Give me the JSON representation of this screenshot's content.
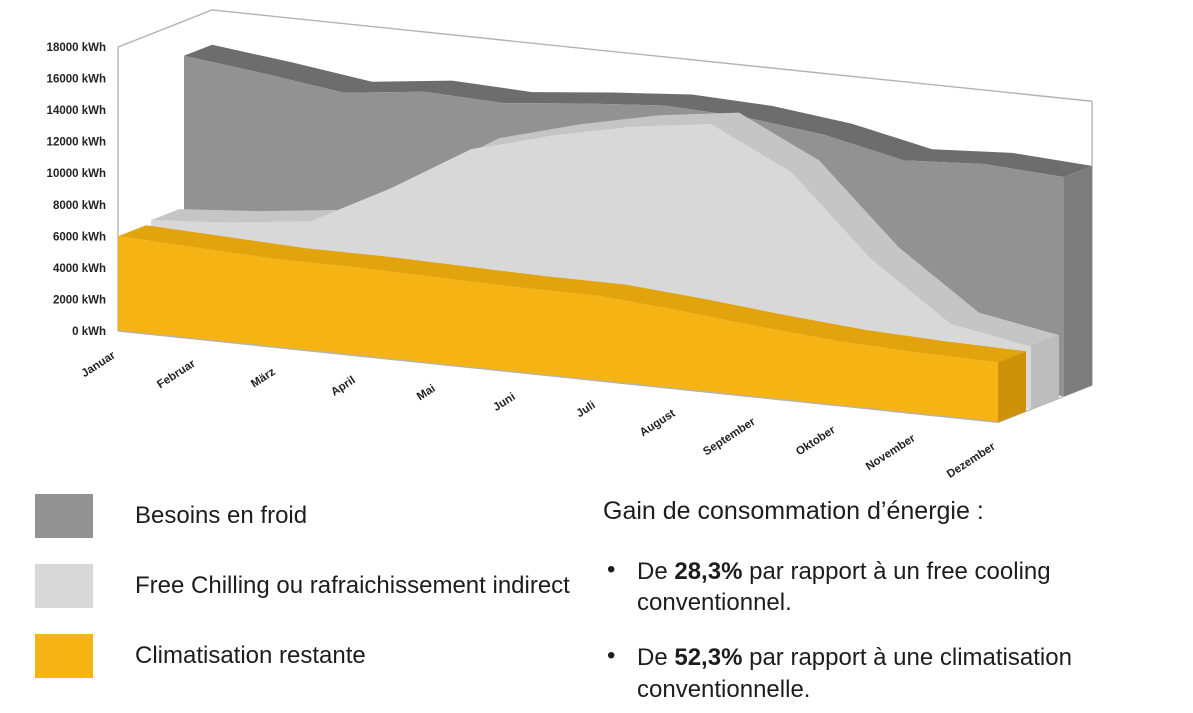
{
  "colors": {
    "besoins_face": "#929292",
    "besoins_top": "#6d6d6d",
    "besoins_cap": "#7c7c7c",
    "free_face": "#d8d8d8",
    "free_top": "#c5c5c5",
    "free_cap": "#bdbdbd",
    "clim_face": "#f5b314",
    "clim_top": "#e2a30c",
    "clim_cap": "#cd920a",
    "axis": "#b3b3b3",
    "label_text": "#222222"
  },
  "chart_data": {
    "type": "area",
    "projection": "3d-ribbon",
    "title": "",
    "xlabel": "",
    "ylabel": "",
    "grid": false,
    "legend_position": "bottom-left",
    "x": [
      "Januar",
      "Februar",
      "März",
      "April",
      "Mai",
      "Juni",
      "Juli",
      "August",
      "September",
      "Oktober",
      "November",
      "Dezember"
    ],
    "ylim": [
      0,
      18000
    ],
    "yticks": [
      0,
      2000,
      4000,
      6000,
      8000,
      10000,
      12000,
      14000,
      16000,
      18000
    ],
    "ytick_labels": [
      "0 kWh",
      "2000 kWh",
      "4000 kWh",
      "6000 kWh",
      "8000 kWh",
      "10000 kWh",
      "12000 kWh",
      "14000 kWh",
      "16000 kWh",
      "18000 kWh"
    ],
    "series": [
      {
        "name": "Besoins en froid",
        "color_key": "besoins",
        "values": [
          15800,
          15200,
          14500,
          15100,
          14900,
          15400,
          15800,
          15600,
          15000,
          13900,
          14200,
          13900
        ]
      },
      {
        "name": "Free Chilling ou rafraichissement indirect",
        "color_key": "free",
        "values": [
          6200,
          6600,
          7200,
          9800,
          12800,
          14200,
          15300,
          16000,
          13500,
          8500,
          4900,
          4000
        ]
      },
      {
        "name": "Climatisation restante",
        "color_key": "clim",
        "values": [
          6000,
          5800,
          5600,
          5600,
          5500,
          5400,
          5400,
          5000,
          4500,
          4100,
          3900,
          3800
        ]
      }
    ]
  },
  "legend": {
    "items": [
      {
        "label": "Besoins en froid"
      },
      {
        "label": "Free Chilling ou rafraichissement indirect"
      },
      {
        "label": "Climatisation restante"
      }
    ]
  },
  "info": {
    "title": "Gain de consommation d’énergie :",
    "bullet_char": "•",
    "bullets": [
      {
        "pre": "De ",
        "bold": "28,3%",
        "post": " par rapport à un free cooling conventionnel."
      },
      {
        "pre": "De ",
        "bold": "52,3%",
        "post": " par rapport à une climatisation conventionnelle."
      }
    ]
  }
}
